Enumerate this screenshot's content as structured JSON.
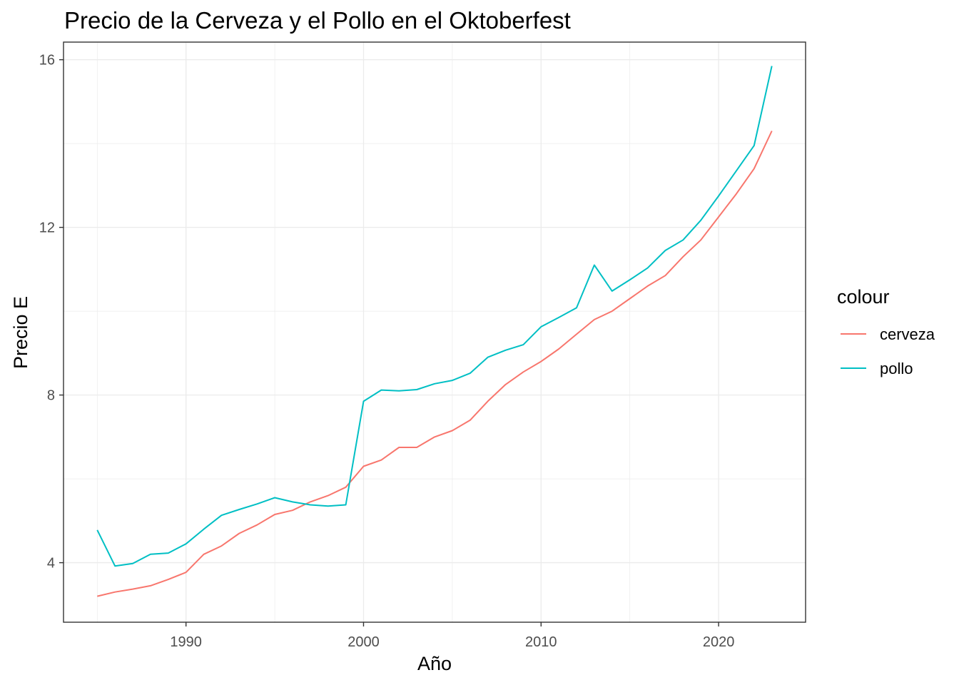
{
  "chart_data": {
    "type": "line",
    "title": "Precio de la Cerveza y el Pollo en el Oktoberfest",
    "xlabel": "Año",
    "ylabel": "Precio E",
    "xlim": [
      1983.1,
      2024.9
    ],
    "ylim": [
      2.58,
      16.42
    ],
    "x_ticks": [
      1990,
      2000,
      2010,
      2020
    ],
    "y_ticks": [
      4,
      8,
      12,
      16
    ],
    "grid": true,
    "legend": {
      "title": "colour",
      "position": "right"
    },
    "x": [
      1985,
      1986,
      1987,
      1988,
      1989,
      1990,
      1991,
      1992,
      1993,
      1994,
      1995,
      1996,
      1997,
      1998,
      1999,
      2000,
      2001,
      2002,
      2003,
      2004,
      2005,
      2006,
      2007,
      2008,
      2009,
      2010,
      2011,
      2012,
      2013,
      2014,
      2015,
      2016,
      2017,
      2018,
      2019,
      2020,
      2021,
      2022,
      2023
    ],
    "series": [
      {
        "name": "cerveza",
        "color": "#F8766D",
        "values": [
          3.2,
          3.3,
          3.37,
          3.45,
          3.6,
          3.77,
          4.2,
          4.4,
          4.7,
          4.9,
          5.15,
          5.25,
          5.45,
          5.6,
          5.8,
          6.3,
          6.45,
          6.75,
          6.75,
          7.0,
          7.15,
          7.4,
          7.85,
          8.25,
          8.55,
          8.8,
          9.1,
          9.45,
          9.8,
          10.0,
          10.3,
          10.6,
          10.85,
          11.3,
          11.7,
          12.25,
          12.8,
          13.4,
          14.3
        ]
      },
      {
        "name": "pollo",
        "color": "#00BFC4",
        "values": [
          4.78,
          3.92,
          3.98,
          4.2,
          4.23,
          4.45,
          4.8,
          5.13,
          5.27,
          5.4,
          5.55,
          5.45,
          5.38,
          5.35,
          5.38,
          7.85,
          8.12,
          8.1,
          8.13,
          8.27,
          8.35,
          8.52,
          8.9,
          9.07,
          9.2,
          9.63,
          9.85,
          10.08,
          11.1,
          10.48,
          10.75,
          11.03,
          11.45,
          11.7,
          12.17,
          12.75,
          13.35,
          13.95,
          15.85
        ]
      }
    ]
  }
}
